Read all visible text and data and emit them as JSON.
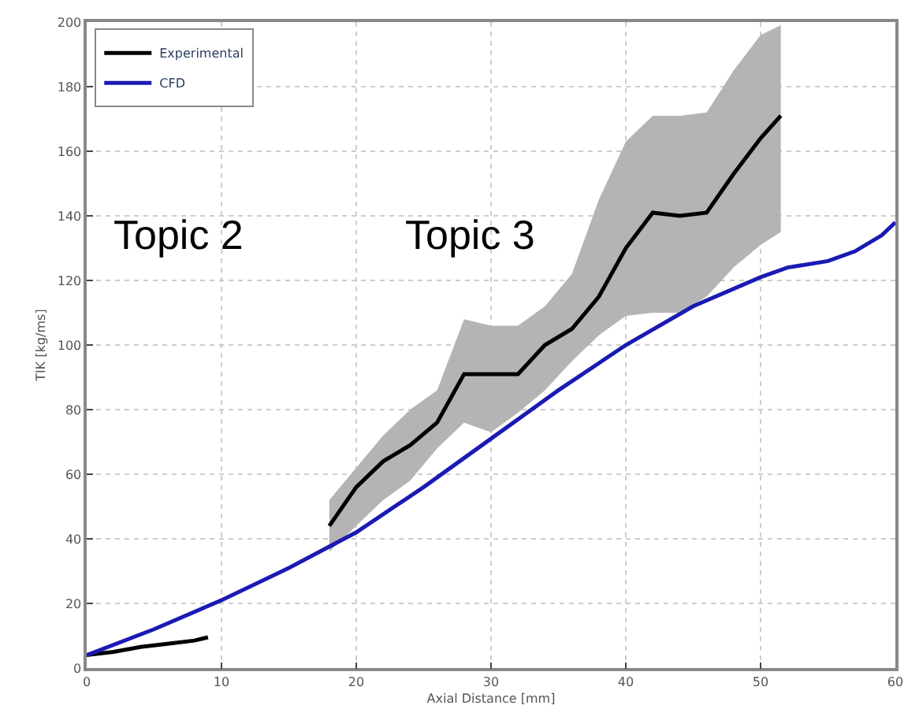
{
  "chart_data": {
    "type": "line",
    "xlabel": "Axial Distance [mm]",
    "ylabel": "TIK [kg/ms]",
    "xlim": [
      0,
      60
    ],
    "xticks": [
      0,
      10,
      20,
      30,
      40,
      50,
      60
    ],
    "ylim": [
      0,
      200
    ],
    "yticks": [
      0,
      20,
      40,
      60,
      80,
      100,
      120,
      140,
      160,
      180,
      200
    ],
    "grid": true,
    "legend": "top left",
    "line_style": "solid",
    "marker": "none",
    "annotations": [
      "Topic 2",
      "Topic 3"
    ],
    "series": [
      {
        "name": "Experimental",
        "color": "#000000",
        "x": [
          0,
          2,
          4,
          6,
          8,
          9,
          13,
          18,
          20,
          22,
          24,
          26,
          28,
          30,
          32,
          34,
          36,
          38,
          40,
          42,
          44,
          46,
          48,
          50,
          51.5
        ],
        "values": [
          4,
          5,
          6.5,
          7.5,
          8.5,
          9.5,
          null,
          44,
          56,
          64,
          69,
          76,
          91,
          91,
          91,
          100,
          105,
          115,
          130,
          141,
          140,
          141,
          153,
          164,
          171
        ],
        "lower": [
          null,
          null,
          null,
          null,
          null,
          null,
          null,
          36,
          44,
          52,
          58,
          68,
          76,
          73,
          79,
          86,
          95,
          103,
          109,
          110,
          110,
          115,
          124,
          131,
          135
        ],
        "upper": [
          null,
          null,
          null,
          null,
          null,
          null,
          null,
          52,
          62,
          72,
          80,
          86,
          108,
          106,
          106,
          112,
          122,
          145,
          163,
          171,
          171,
          172,
          185,
          196,
          199
        ]
      },
      {
        "name": "CFD",
        "color": "#1a1ab4",
        "x": [
          0,
          5,
          10,
          15,
          20,
          25,
          30,
          35,
          40,
          45,
          50,
          52,
          55,
          57,
          59,
          60
        ],
        "values": [
          4,
          12,
          21,
          31,
          42,
          56,
          71,
          86,
          100,
          112,
          121,
          124,
          126,
          129,
          134,
          138
        ]
      }
    ]
  }
}
